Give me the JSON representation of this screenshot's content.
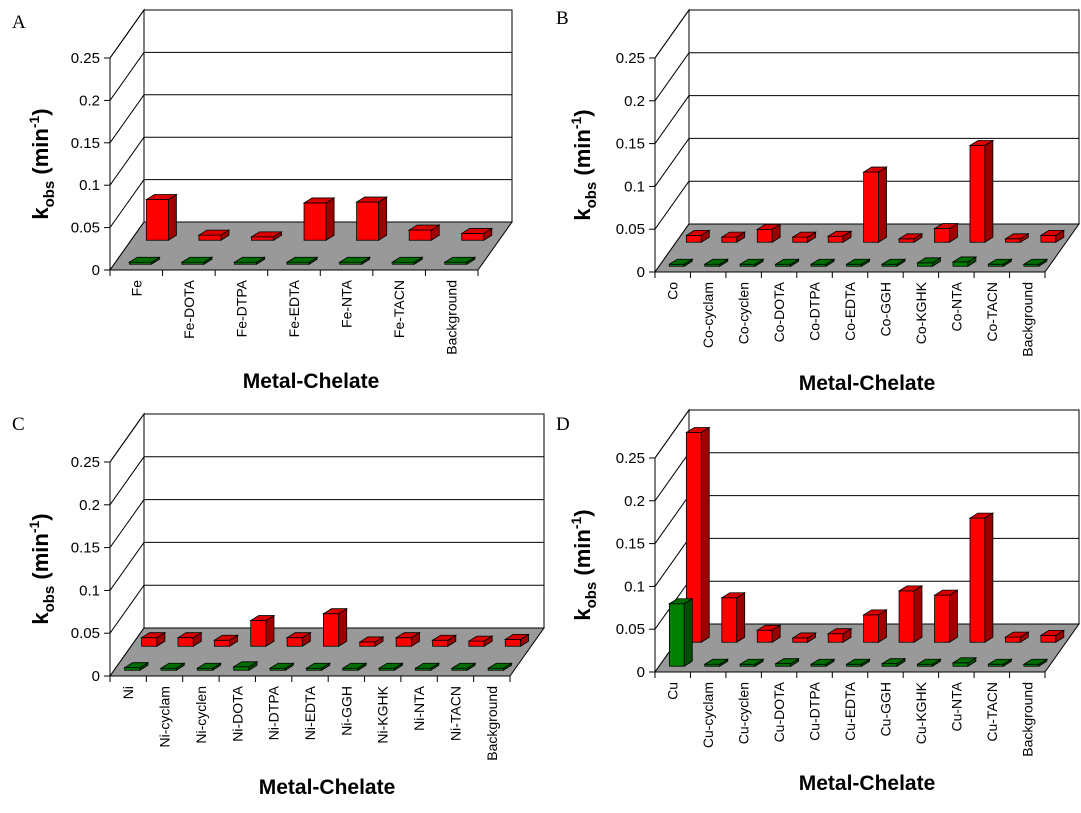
{
  "colors": {
    "red": "#ff0000",
    "green": "#008000",
    "floor": "#999999"
  },
  "chart_data": [
    {
      "type": "bar",
      "panel": "A",
      "xlabel": "Metal-Chelate",
      "ylabel": {
        "main": "k",
        "sub": "obs",
        "unit_open": " (min",
        "sup": "-1",
        "unit_close": ")"
      },
      "ylim": [
        0,
        0.25
      ],
      "yticks": [
        "0",
        "0.05",
        "0.1",
        "0.15",
        "0.2",
        "0.25"
      ],
      "categories": [
        "Fe",
        "Fe-DOTA",
        "Fe-DTPA",
        "Fe-EDTA",
        "Fe-NTA",
        "Fe-TACN",
        "Background"
      ],
      "series": [
        {
          "color": "#ff0000",
          "values": [
            0.048,
            0.006,
            0.004,
            0.044,
            0.045,
            0.012,
            0.008
          ]
        },
        {
          "color": "#008000",
          "values": [
            0.002,
            0.002,
            0.002,
            0.002,
            0.002,
            0.002,
            0.002
          ]
        }
      ]
    },
    {
      "type": "bar",
      "panel": "B",
      "xlabel": "Metal-Chelate",
      "ylabel": {
        "main": "k",
        "sub": "obs",
        "unit_open": " (min",
        "sup": "-1",
        "unit_close": ")"
      },
      "ylim": [
        0,
        0.25
      ],
      "yticks": [
        "0",
        "0.05",
        "0.1",
        "0.15",
        "0.2",
        "0.25"
      ],
      "categories": [
        "Co",
        "Co-cyclam",
        "Co-cyclen",
        "Co-DOTA",
        "Co-DTPA",
        "Co-EDTA",
        "Co-GGH",
        "Co-KGHK",
        "Co-NTA",
        "Co-TACN",
        "Background"
      ],
      "series": [
        {
          "color": "#ff0000",
          "values": [
            0.008,
            0.006,
            0.015,
            0.006,
            0.007,
            0.082,
            0.004,
            0.016,
            0.113,
            0.004,
            0.008
          ]
        },
        {
          "color": "#008000",
          "values": [
            0.002,
            0.001,
            0.001,
            0.001,
            0.001,
            0.001,
            0.001,
            0.004,
            0.005,
            0.001,
            0.002
          ]
        }
      ]
    },
    {
      "type": "bar",
      "panel": "C",
      "xlabel": "Metal-Chelate",
      "ylabel": {
        "main": "k",
        "sub": "obs",
        "unit_open": " (min",
        "sup": "-1",
        "unit_close": ")"
      },
      "ylim": [
        0,
        0.25
      ],
      "yticks": [
        "0",
        "0.05",
        "0.1",
        "0.15",
        "0.2",
        "0.25"
      ],
      "categories": [
        "Ni",
        "Ni-cyclam",
        "Ni-cyclen",
        "Ni-DOTA",
        "Ni-DTPA",
        "Ni-EDTA",
        "Ni-GGH",
        "Ni-KGHK",
        "Ni-NTA",
        "Ni-TACN",
        "Background"
      ],
      "series": [
        {
          "color": "#ff0000",
          "values": [
            0.01,
            0.01,
            0.007,
            0.03,
            0.01,
            0.038,
            0.005,
            0.01,
            0.007,
            0.006,
            0.008
          ]
        },
        {
          "color": "#008000",
          "values": [
            0.003,
            0.002,
            0.002,
            0.004,
            0.0,
            0.001,
            0.0,
            0.001,
            0.0,
            0.0,
            0.002
          ]
        }
      ]
    },
    {
      "type": "bar",
      "panel": "D",
      "xlabel": "Metal-Chelate",
      "ylabel": {
        "main": "k",
        "sub": "obs",
        "unit_open": " (min",
        "sup": "-1",
        "unit_close": ")"
      },
      "ylim": [
        0,
        0.25
      ],
      "yticks": [
        "0",
        "0.05",
        "0.1",
        "0.15",
        "0.2",
        "0.25"
      ],
      "categories": [
        "Cu",
        "Cu-cyclam",
        "Cu-cyclen",
        "Cu-DOTA",
        "Cu-DTPA",
        "Cu-EDTA",
        "Cu-GGH",
        "Cu-KGHK",
        "Cu-NTA",
        "Cu-TACN",
        "Background"
      ],
      "series": [
        {
          "color": "#ff0000",
          "values": [
            0.245,
            0.052,
            0.014,
            0.005,
            0.01,
            0.032,
            0.06,
            0.055,
            0.145,
            0.006,
            0.008
          ]
        },
        {
          "color": "#008000",
          "values": [
            0.073,
            0.002,
            0.002,
            0.003,
            0.0,
            0.002,
            0.003,
            0.002,
            0.004,
            0.0,
            0.002
          ]
        }
      ]
    }
  ]
}
